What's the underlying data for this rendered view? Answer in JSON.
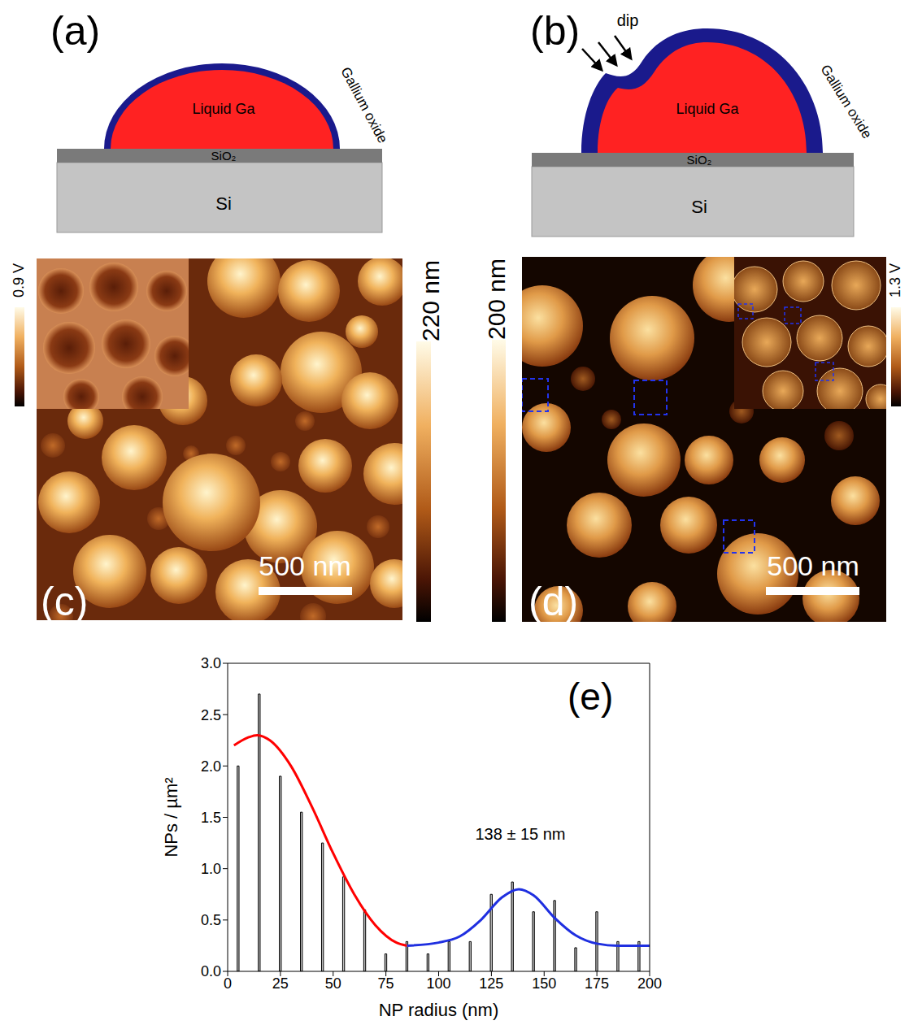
{
  "panels": {
    "a": {
      "label": "(a)",
      "drop": "Liquid Ga",
      "shell": "Gallium oxide",
      "layer": "SiO₂",
      "substrate": "Si"
    },
    "b": {
      "label": "(b)",
      "drop": "Liquid Ga",
      "shell": "Gallium oxide",
      "layer": "SiO₂",
      "substrate": "Si",
      "arrow_label": "dip"
    },
    "c": {
      "label": "(c)",
      "color_bar": "220 nm",
      "inset_color_bar": "0.9 V",
      "scale_bar": "500 nm"
    },
    "d": {
      "label": "(d)",
      "color_bar": "200 nm",
      "inset_color_bar": "1.3 V",
      "scale_bar": "500 nm"
    }
  },
  "chart_data": {
    "type": "bar",
    "panel_label": "(e)",
    "x_label": "NP radius (nm)",
    "y_label": "NPs / µm²",
    "annotation": "138 ± 15 nm",
    "bins": [
      0,
      10,
      20,
      30,
      40,
      50,
      60,
      70,
      80,
      90,
      100,
      110,
      120,
      130,
      140,
      150,
      160,
      170,
      180,
      190,
      200
    ],
    "values": [
      2.0,
      2.7,
      1.9,
      1.55,
      1.25,
      0.92,
      0.6,
      0.17,
      0.29,
      0.17,
      0.29,
      0.29,
      0.75,
      0.87,
      0.58,
      0.69,
      0.23,
      0.58,
      0.29,
      0.29
    ],
    "color": "#c0c0c0",
    "xlim": [
      0,
      200
    ],
    "xticks": [
      0,
      25,
      50,
      75,
      100,
      125,
      150,
      175,
      200
    ],
    "ylim": [
      0,
      3
    ],
    "yticks": [
      {
        "value": 0,
        "label": "0.0"
      },
      0.5,
      {
        "value": 1,
        "label": "1.0"
      },
      1.5,
      {
        "value": 2,
        "label": "2.0"
      },
      2.5,
      {
        "value": 3,
        "label": "3.0"
      }
    ],
    "fits": [
      {
        "color": "#ff0000",
        "x": [
          3,
          10,
          14,
          20,
          30,
          40,
          50,
          60,
          70,
          80,
          85
        ],
        "values": [
          2.2,
          2.28,
          2.3,
          2.25,
          2.0,
          1.6,
          1.15,
          0.75,
          0.45,
          0.28,
          0.25
        ]
      },
      {
        "color": "#1f2fe0",
        "x": [
          85,
          100,
          110,
          120,
          130,
          138,
          145,
          155,
          165,
          175,
          185,
          200
        ],
        "values": [
          0.25,
          0.28,
          0.34,
          0.5,
          0.72,
          0.8,
          0.74,
          0.52,
          0.35,
          0.27,
          0.25,
          0.25
        ]
      }
    ]
  }
}
